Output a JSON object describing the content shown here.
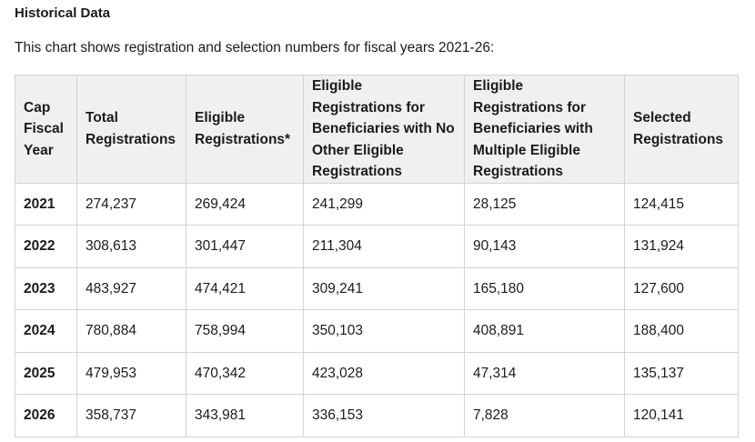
{
  "heading": "Historical Data",
  "intro": "This chart shows registration and selection numbers for fiscal years 2021-26:",
  "table": {
    "headers": [
      "Cap Fiscal Year",
      "Total Registrations",
      "Eligible Registrations*",
      "Eligible Registrations for Beneficiaries with No Other Eligible Registrations",
      "Eligible Registrations for Beneficiaries with Multiple Eligible Registrations",
      "Selected Registrations"
    ],
    "rows": [
      [
        "2021",
        "274,237",
        "269,424",
        "241,299",
        "28,125",
        "124,415"
      ],
      [
        "2022",
        "308,613",
        "301,447",
        "211,304",
        "90,143",
        "131,924"
      ],
      [
        "2023",
        "483,927",
        "474,421",
        "309,241",
        "165,180",
        "127,600"
      ],
      [
        "2024",
        "780,884",
        "758,994",
        "350,103",
        "408,891",
        "188,400"
      ],
      [
        "2025",
        "479,953",
        "470,342",
        "423,028",
        "47,314",
        "135,137"
      ],
      [
        "2026",
        "358,737",
        "343,981",
        "336,153",
        "7,828",
        "120,141"
      ]
    ]
  }
}
